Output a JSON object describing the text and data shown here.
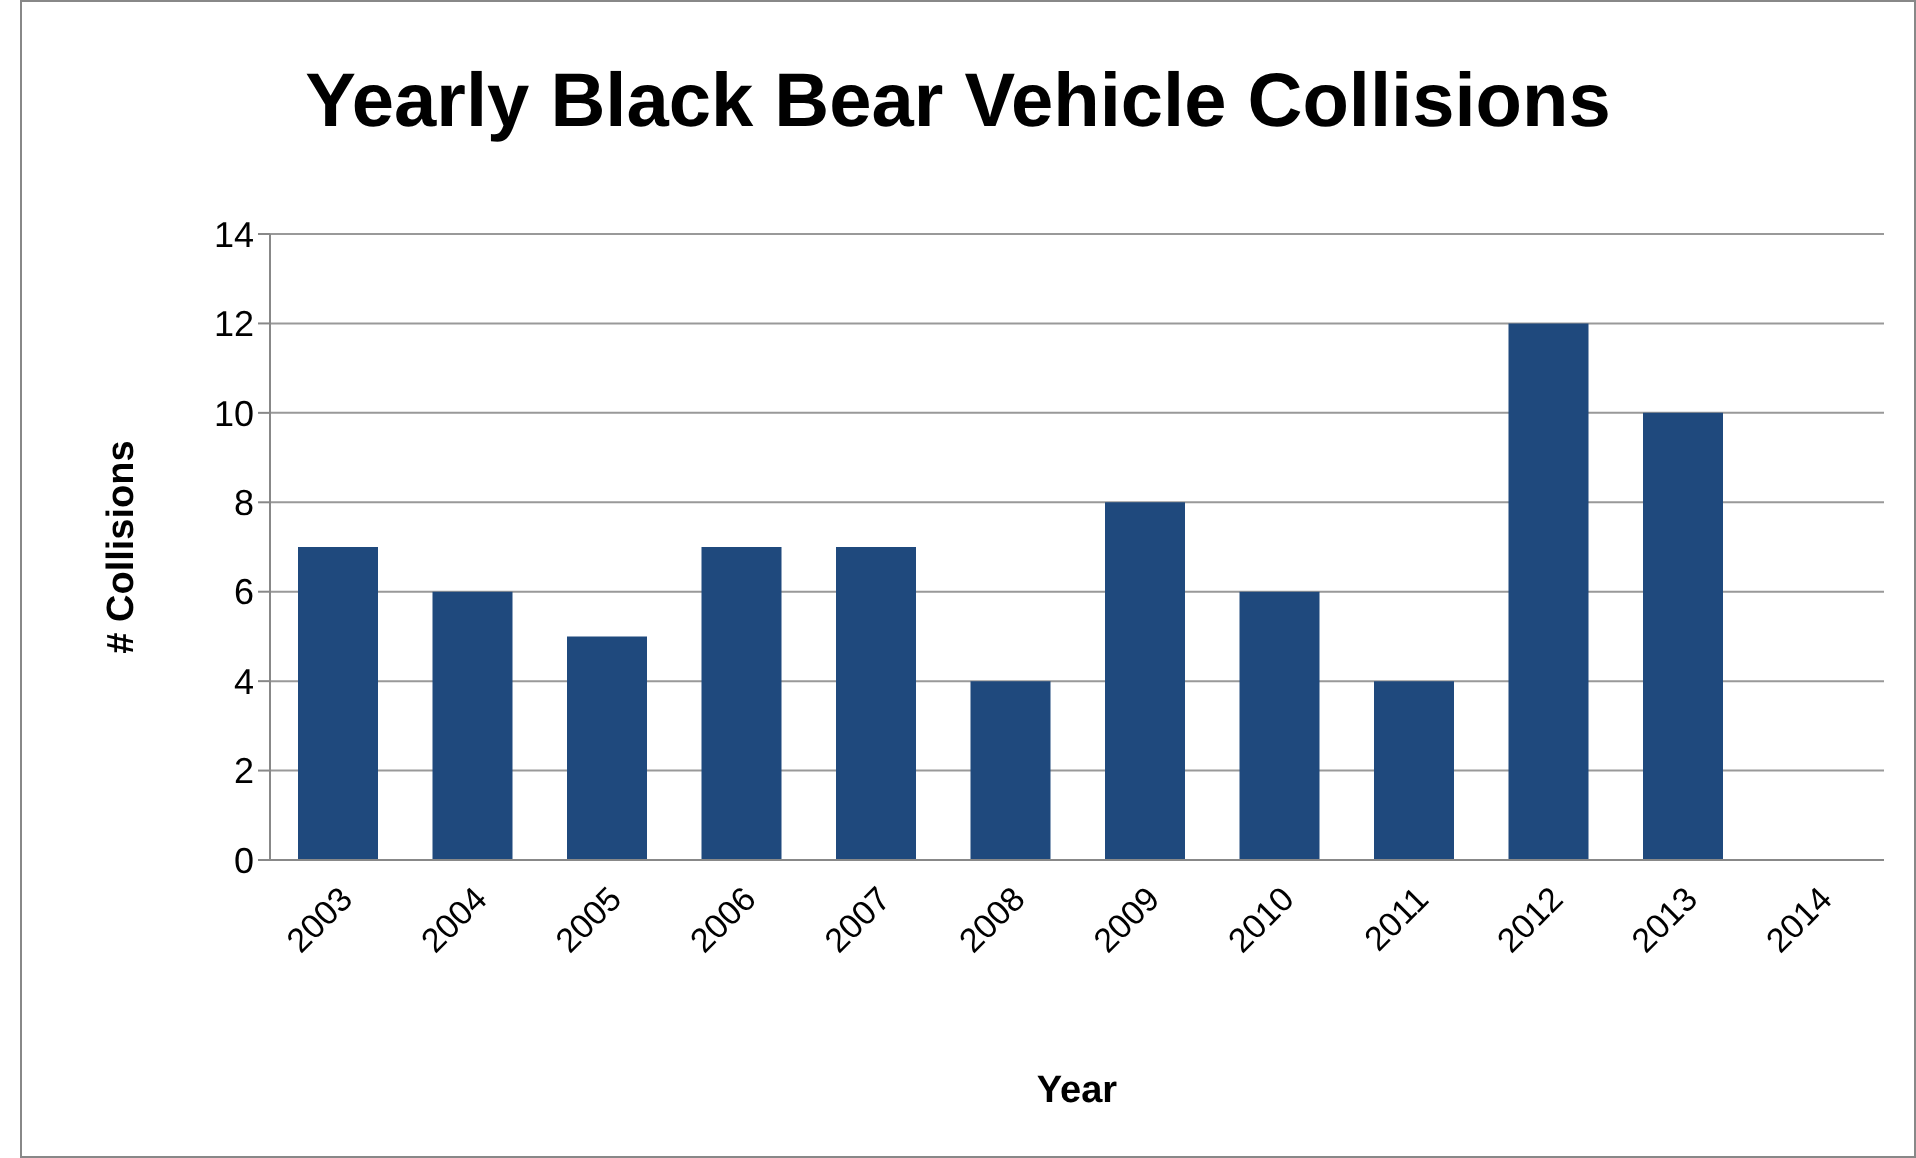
{
  "chart_data": {
    "type": "bar",
    "title": "Yearly Black Bear Vehicle Collisions",
    "xlabel": "Year",
    "ylabel": "# Collisions",
    "categories": [
      "2003",
      "2004",
      "2005",
      "2006",
      "2007",
      "2008",
      "2009",
      "2010",
      "2011",
      "2012",
      "2013",
      "2014"
    ],
    "values": [
      7,
      6,
      5,
      7,
      7,
      4,
      8,
      6,
      4,
      12,
      10,
      null
    ],
    "color": "#1f497d",
    "ylim": [
      0,
      14
    ],
    "yticks": [
      0,
      2,
      4,
      6,
      8,
      10,
      12,
      14
    ],
    "grid": "y",
    "legend": false
  }
}
